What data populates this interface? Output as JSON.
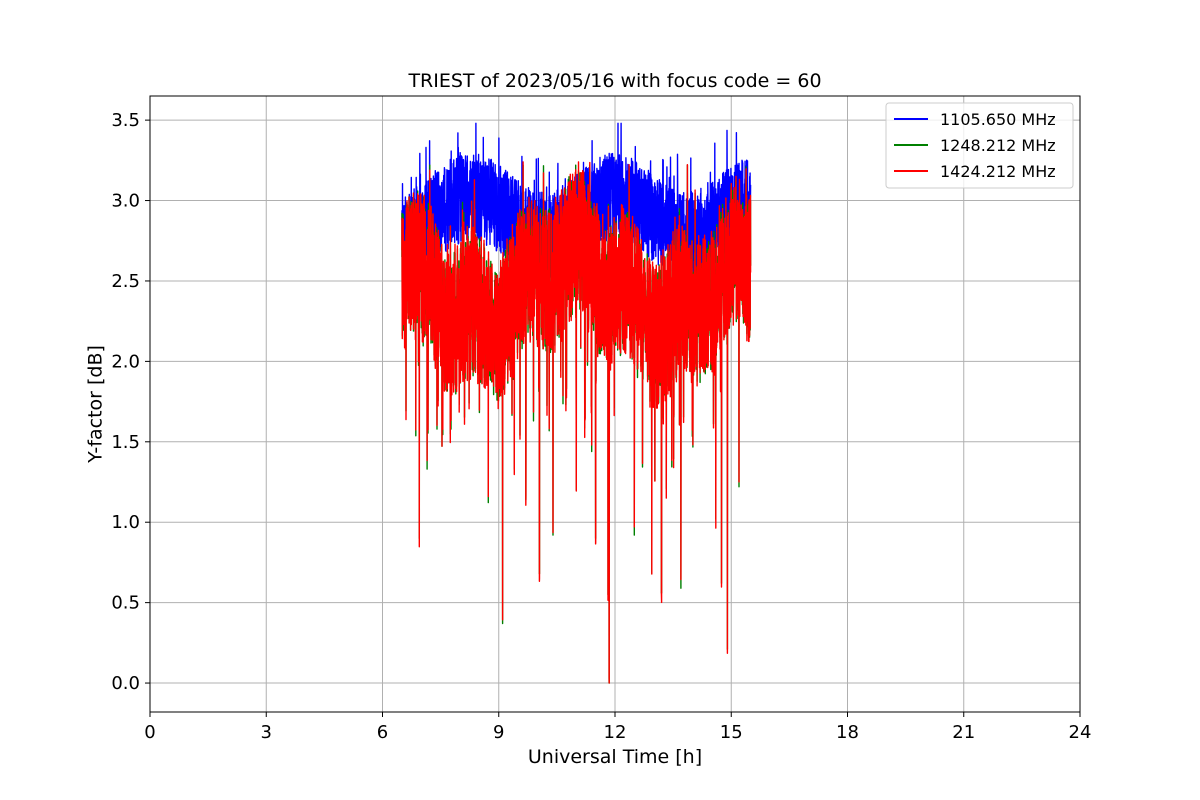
{
  "chart_data": {
    "type": "line",
    "title": "TRIEST of 2023/05/16 with focus code = 60",
    "xlabel": "Universal Time [h]",
    "ylabel": "Y-factor [dB]",
    "xlim": [
      0,
      24
    ],
    "ylim": [
      -0.18,
      3.65
    ],
    "xticks": [
      0,
      3,
      6,
      9,
      12,
      15,
      18,
      21,
      24
    ],
    "xtick_labels": [
      "0",
      "3",
      "6",
      "9",
      "12",
      "15",
      "18",
      "21",
      "24"
    ],
    "yticks": [
      0.0,
      0.5,
      1.0,
      1.5,
      2.0,
      2.5,
      3.0,
      3.5
    ],
    "ytick_labels": [
      "0.0",
      "0.5",
      "1.0",
      "1.5",
      "2.0",
      "2.5",
      "3.0",
      "3.5"
    ],
    "grid": true,
    "legend_position": "top-right",
    "data_time_range": [
      6.5,
      15.5
    ],
    "series": [
      {
        "name": "1105.650 MHz",
        "color": "#0000ff",
        "typical_range": [
          2.4,
          3.35
        ],
        "max": 3.48,
        "min": 2.05
      },
      {
        "name": "1248.212 MHz",
        "color": "#008000",
        "typical_range": [
          2.0,
          2.95
        ],
        "max": 3.2,
        "min": 0.21
      },
      {
        "name": "1424.212 MHz",
        "color": "#ff0000",
        "typical_range": [
          2.0,
          2.95
        ],
        "max": 3.24,
        "min": 0.0
      }
    ],
    "notable_dips": [
      {
        "x": 6.95,
        "y": 0.9
      },
      {
        "x": 7.15,
        "y": 1.33
      },
      {
        "x": 7.75,
        "y": 1.55
      },
      {
        "x": 9.1,
        "y": 0.37
      },
      {
        "x": 9.4,
        "y": 1.33
      },
      {
        "x": 9.7,
        "y": 1.14
      },
      {
        "x": 10.05,
        "y": 0.68
      },
      {
        "x": 10.4,
        "y": 0.92
      },
      {
        "x": 11.0,
        "y": 1.2
      },
      {
        "x": 11.5,
        "y": 0.9
      },
      {
        "x": 11.82,
        "y": 0.55
      },
      {
        "x": 11.85,
        "y": 0.0
      },
      {
        "x": 12.5,
        "y": 0.92
      },
      {
        "x": 12.95,
        "y": 0.68
      },
      {
        "x": 13.2,
        "y": 0.56
      },
      {
        "x": 13.7,
        "y": 0.59
      },
      {
        "x": 14.6,
        "y": 1.02
      },
      {
        "x": 14.75,
        "y": 0.62
      },
      {
        "x": 14.9,
        "y": 0.21
      },
      {
        "x": 15.2,
        "y": 1.22
      }
    ]
  }
}
